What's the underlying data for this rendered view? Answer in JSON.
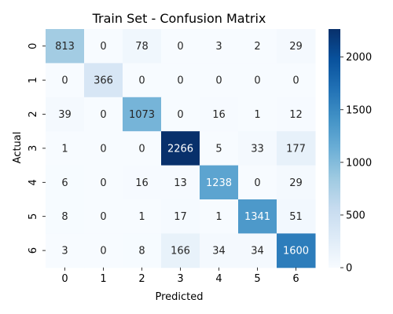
{
  "chart_data": {
    "type": "heatmap",
    "title": "Train Set - Confusion Matrix",
    "xlabel": "Predicted",
    "ylabel": "Actual",
    "x_categories": [
      "0",
      "1",
      "2",
      "3",
      "4",
      "5",
      "6"
    ],
    "y_categories": [
      "0",
      "1",
      "2",
      "3",
      "4",
      "5",
      "6"
    ],
    "values": [
      [
        813,
        0,
        78,
        0,
        3,
        2,
        29
      ],
      [
        0,
        366,
        0,
        0,
        0,
        0,
        0
      ],
      [
        39,
        0,
        1073,
        0,
        16,
        1,
        12
      ],
      [
        1,
        0,
        0,
        2266,
        5,
        33,
        177
      ],
      [
        6,
        0,
        16,
        13,
        1238,
        0,
        29
      ],
      [
        8,
        0,
        1,
        17,
        1,
        1341,
        51
      ],
      [
        3,
        0,
        8,
        166,
        34,
        34,
        1600
      ]
    ],
    "colormap": "Blues",
    "value_range": [
      0,
      2266
    ],
    "colorbar_ticks": [
      0,
      500,
      1000,
      1500,
      2000
    ],
    "annotations": "cell values shown"
  }
}
